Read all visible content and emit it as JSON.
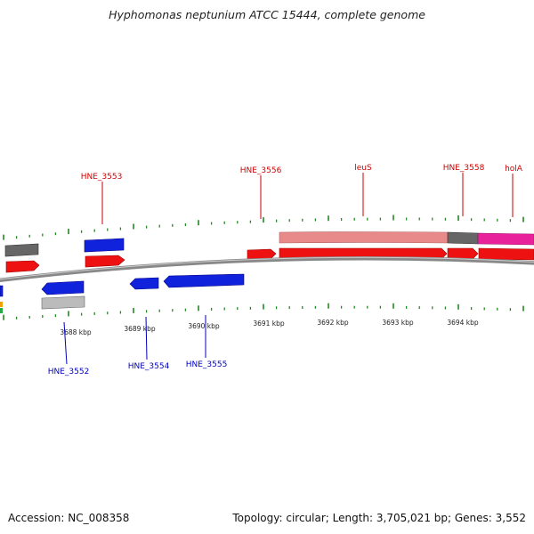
{
  "title": "Hyphomonas neptunium ATCC 15444, complete genome",
  "footer": {
    "accession": "Accession: NC_008358",
    "summary": "Topology: circular; Length: 3,705,021 bp; Genes: 3,552"
  },
  "colors": {
    "forward_cds": "#ee1111",
    "reverse_cds": "#1122dd",
    "forward_label": "#cc0000",
    "reverse_label": "#0000bb",
    "tick": "#228822",
    "backbone": "#888888",
    "feature_pink": "#e88a8a",
    "feature_dark": "#666666",
    "feature_magenta": "#e8229a",
    "feature_gray": "#bbbbbb",
    "feature_orange": "#f0a000",
    "feature_green": "#22aa44"
  },
  "ruler": {
    "ticks": [
      "3688 kbp",
      "3689 kbp",
      "3690 kbp",
      "3691 kbp",
      "3692 kbp",
      "3693 kbp",
      "3694 kbp"
    ]
  },
  "labels": {
    "forward": [
      "HNE_3553",
      "HNE_3556",
      "leuS",
      "HNE_3558",
      "holA"
    ],
    "reverse": [
      "HNE_3552",
      "HNE_3554",
      "HNE_3555"
    ]
  }
}
